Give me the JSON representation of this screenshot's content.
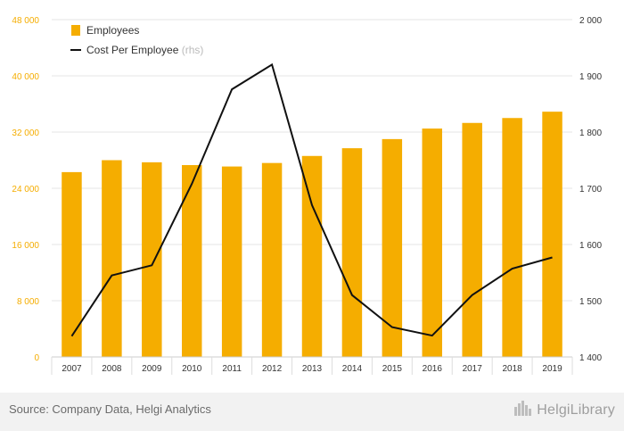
{
  "chart_data": {
    "type": "bar+line",
    "categories": [
      "2007",
      "2008",
      "2009",
      "2010",
      "2011",
      "2012",
      "2013",
      "2014",
      "2015",
      "2016",
      "2017",
      "2018",
      "2019"
    ],
    "series": [
      {
        "name": "Employees",
        "type": "bar",
        "axis": "left",
        "color": "#f5ad00",
        "values": [
          26300,
          28000,
          27700,
          27300,
          27100,
          27600,
          28600,
          29700,
          31000,
          32500,
          33300,
          34000,
          34900
        ]
      },
      {
        "name": "Cost Per Employee",
        "axis_note": "(rhs)",
        "type": "line",
        "axis": "right",
        "color": "#111111",
        "values": [
          1437,
          1545,
          1563,
          1708,
          1876,
          1920,
          1670,
          1510,
          1453,
          1438,
          1510,
          1557,
          1577
        ]
      }
    ],
    "y_left": {
      "range": [
        0,
        48000
      ],
      "ticks": [
        0,
        8000,
        16000,
        24000,
        32000,
        40000,
        48000
      ],
      "tick_labels": [
        "0",
        "8 000",
        "16 000",
        "24 000",
        "32 000",
        "40 000",
        "48 000"
      ],
      "color": "#f5ad00"
    },
    "y_right": {
      "range": [
        1400,
        2000
      ],
      "ticks": [
        1400,
        1500,
        1600,
        1700,
        1800,
        1900,
        2000
      ],
      "tick_labels": [
        "1 400",
        "1 500",
        "1 600",
        "1 700",
        "1 800",
        "1 900",
        "2 000"
      ]
    },
    "grid": true,
    "legend_position": "top-left",
    "title": "",
    "xlabel": "",
    "ylabel": ""
  },
  "footer": {
    "source": "Source: Company Data, Helgi Analytics",
    "brand": "HelgiLibrary"
  },
  "icons": {
    "brand_logo": "city-skyline-icon"
  }
}
